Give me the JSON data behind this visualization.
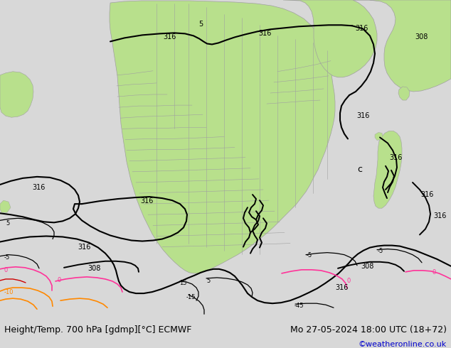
{
  "title_left": "Height/Temp. 700 hPa [gdmp][°C] ECMWF",
  "title_right": "Mo 27-05-2024 18:00 UTC (18+72)",
  "credit": "©weatheronline.co.uk",
  "fig_width": 6.34,
  "fig_height": 4.9,
  "dpi": 100,
  "background_color": "#d8d8d8",
  "land_green_color": "#b8e08c",
  "border_color": "#a0a0a0",
  "contour_black_color": "#000000",
  "contour_pink_color": "#ff3399",
  "contour_orange_color": "#ff8800",
  "title_fontsize": 9,
  "credit_fontsize": 8,
  "credit_color": "#0000cc"
}
